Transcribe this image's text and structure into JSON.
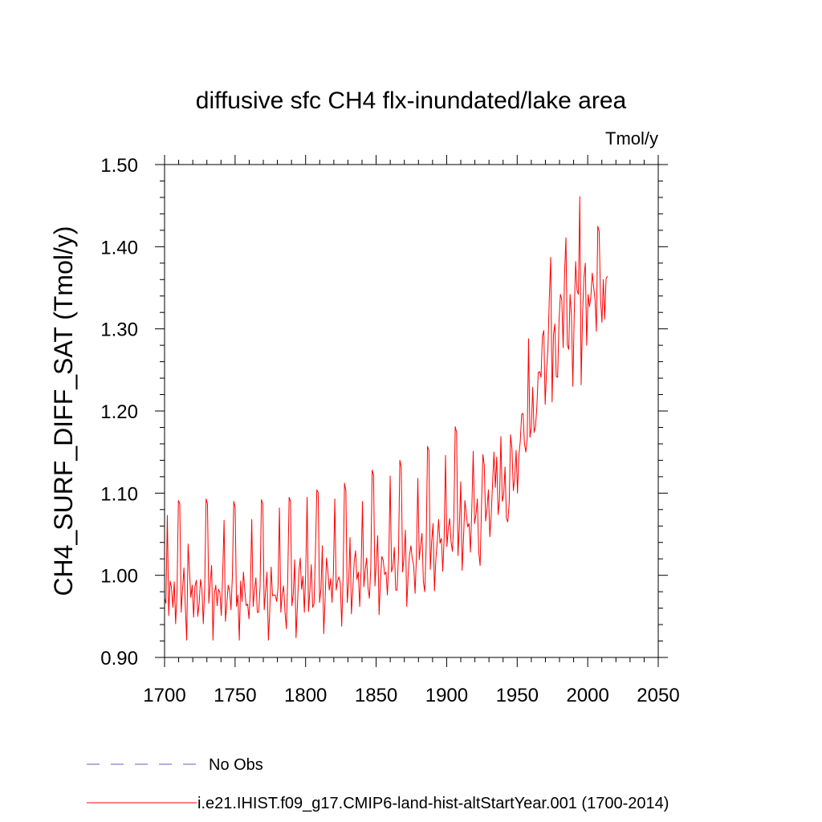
{
  "chart_data": {
    "type": "line",
    "title": "diffusive sfc CH4 flx-inundated/lake area",
    "units": "Tmol/y",
    "xlabel": "",
    "ylabel": "CH4_SURF_DIFF_SAT  (Tmol/y)",
    "xlim": [
      1700,
      2050
    ],
    "ylim": [
      0.9,
      1.5
    ],
    "x_ticks": [
      1700,
      1750,
      1800,
      1850,
      1900,
      1950,
      2000,
      2050
    ],
    "x_tick_labels": [
      "1700",
      "1750",
      "1800",
      "1850",
      "1900",
      "1950",
      "2000",
      "2050"
    ],
    "y_ticks": [
      0.9,
      1.0,
      1.1,
      1.2,
      1.3,
      1.4,
      1.5
    ],
    "y_tick_labels": [
      "0.90",
      "1.00",
      "1.10",
      "1.20",
      "1.30",
      "1.40",
      "1.50"
    ],
    "grid": false,
    "legend_placement": "bottom-left, below plot",
    "series": [
      {
        "name": "No Obs",
        "color": "#6a5acd",
        "dash": "dashed",
        "years": [],
        "values": []
      },
      {
        "name": "i.e21.IHIST.f09_g17.CMIP6-land-hist-altStartYear.001 (1700-2014)",
        "color": "#ff0000",
        "dash": "solid",
        "years": [
          1700,
          2014
        ],
        "values": [
          0.972,
          0.966,
          1.073,
          0.951,
          0.993,
          0.985,
          0.961,
          0.992,
          0.941,
          0.978,
          1.091,
          1.087,
          0.955,
          0.983,
          1.009,
          0.962,
          0.921,
          1.038,
          1.005,
          0.973,
          0.988,
          0.949,
          0.987,
          0.994,
          0.95,
          0.966,
          0.995,
          0.983,
          0.941,
          0.984,
          1.093,
          1.087,
          0.966,
          0.991,
          1.012,
          0.921,
          0.978,
          0.988,
          0.963,
          0.983,
          0.979,
          0.951,
          1.001,
          1.067,
          0.944,
          0.966,
          0.988,
          0.981,
          0.958,
          0.999,
          1.09,
          1.083,
          0.962,
          0.976,
          0.921,
          0.993,
          0.968,
          1.004,
          0.981,
          0.963,
          0.965,
          0.947,
          0.982,
          1.068,
          0.962,
          0.982,
          0.997,
          0.955,
          0.955,
          0.985,
          1.092,
          1.087,
          0.958,
          0.981,
          1.004,
          0.921,
          0.956,
          1.01,
          0.975,
          0.976,
          0.976,
          0.968,
          0.985,
          1.082,
          0.955,
          0.977,
          0.987,
          0.956,
          0.935,
          0.996,
          1.095,
          1.09,
          0.963,
          0.977,
          1.019,
          0.924,
          0.964,
          1.003,
          1.021,
          0.983,
          0.999,
          0.955,
          1.004,
          1.095,
          0.956,
          0.981,
          1.013,
          0.961,
          0.965,
          1.027,
          1.104,
          1.101,
          0.967,
          0.983,
          1.036,
          0.929,
          0.971,
          1.021,
          1.005,
          0.982,
          0.996,
          0.967,
          1.004,
          1.093,
          0.982,
          0.993,
          0.998,
          0.99,
          0.938,
          0.999,
          1.112,
          1.103,
          0.967,
          0.99,
          1.046,
          0.953,
          0.982,
          1.016,
          1.03,
          0.995,
          1.004,
          0.962,
          1.006,
          1.09,
          0.986,
          1.007,
          1.021,
          0.985,
          0.972,
          1.009,
          1.128,
          1.122,
          0.987,
          1.017,
          1.048,
          0.952,
          0.995,
          1.023,
          1.018,
          1.001,
          1.004,
          0.976,
          1.016,
          1.121,
          1.004,
          1.011,
          1.034,
          0.982,
          0.982,
          1.024,
          1.14,
          1.132,
          1.004,
          1.022,
          1.055,
          0.962,
          1.001,
          1.025,
          1.036,
          1.02,
          1.012,
          0.978,
          1.024,
          1.118,
          1.019,
          1.037,
          1.051,
          0.992,
          0.98,
          1.035,
          1.157,
          1.152,
          1.007,
          1.042,
          1.063,
          0.981,
          1.019,
          1.041,
          1.068,
          1.039,
          1.045,
          1.005,
          1.046,
          1.146,
          1.035,
          1.057,
          1.069,
          1.041,
          1.029,
          1.068,
          1.181,
          1.174,
          1.024,
          1.06,
          1.114,
          1.006,
          1.045,
          1.091,
          1.075,
          1.059,
          1.063,
          1.028,
          1.081,
          1.151,
          1.063,
          1.074,
          1.093,
          1.028,
          1.012,
          1.085,
          1.147,
          1.134,
          1.066,
          1.082,
          1.104,
          1.047,
          1.073,
          1.112,
          1.15,
          1.107,
          1.144,
          1.074,
          1.092,
          1.169,
          1.09,
          1.098,
          1.132,
          1.069,
          1.065,
          1.088,
          1.171,
          1.154,
          1.103,
          1.119,
          1.152,
          1.1,
          1.146,
          1.163,
          1.196,
          1.197,
          1.161,
          1.15,
          1.166,
          1.288,
          1.168,
          1.18,
          1.229,
          1.174,
          1.181,
          1.205,
          1.247,
          1.248,
          1.241,
          1.291,
          1.298,
          1.208,
          1.249,
          1.276,
          1.338,
          1.387,
          1.211,
          1.293,
          1.306,
          1.242,
          1.241,
          1.309,
          1.342,
          1.336,
          1.277,
          1.367,
          1.411,
          1.28,
          1.275,
          1.342,
          1.316,
          1.23,
          1.319,
          1.382,
          1.347,
          1.342,
          1.461,
          1.232,
          1.317,
          1.362,
          1.38,
          1.28,
          1.342,
          1.327,
          1.339,
          1.368,
          1.351,
          1.336,
          1.297,
          1.425,
          1.419,
          1.337,
          1.308,
          1.36,
          1.312,
          1.361,
          1.364
        ]
      }
    ]
  }
}
